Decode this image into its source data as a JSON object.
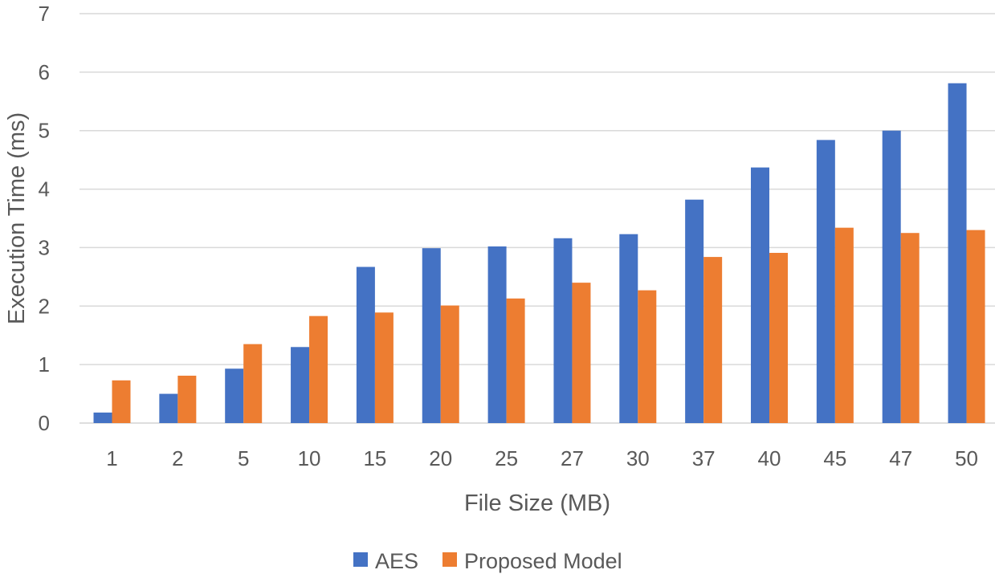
{
  "chart_data": {
    "type": "bar",
    "xlabel": "File Size (MB)",
    "ylabel": "Execution Time (ms)",
    "ylim": [
      0,
      7
    ],
    "yticks": [
      "0",
      "1",
      "2",
      "3",
      "4",
      "5",
      "6",
      "7"
    ],
    "grid": true,
    "legend_position": "bottom",
    "categories": [
      "1",
      "2",
      "5",
      "10",
      "15",
      "20",
      "25",
      "27",
      "30",
      "37",
      "40",
      "45",
      "47",
      "50"
    ],
    "series": [
      {
        "name": "AES",
        "color": "#4472c4",
        "values": [
          0.18,
          0.5,
          0.93,
          1.3,
          2.67,
          2.99,
          3.02,
          3.16,
          3.23,
          3.82,
          4.37,
          4.84,
          5.0,
          5.81
        ]
      },
      {
        "name": "Proposed Model",
        "color": "#ed7d31",
        "values": [
          0.73,
          0.81,
          1.35,
          1.83,
          1.89,
          2.01,
          2.13,
          2.4,
          2.27,
          2.84,
          2.91,
          3.34,
          3.25,
          3.3
        ]
      }
    ]
  }
}
